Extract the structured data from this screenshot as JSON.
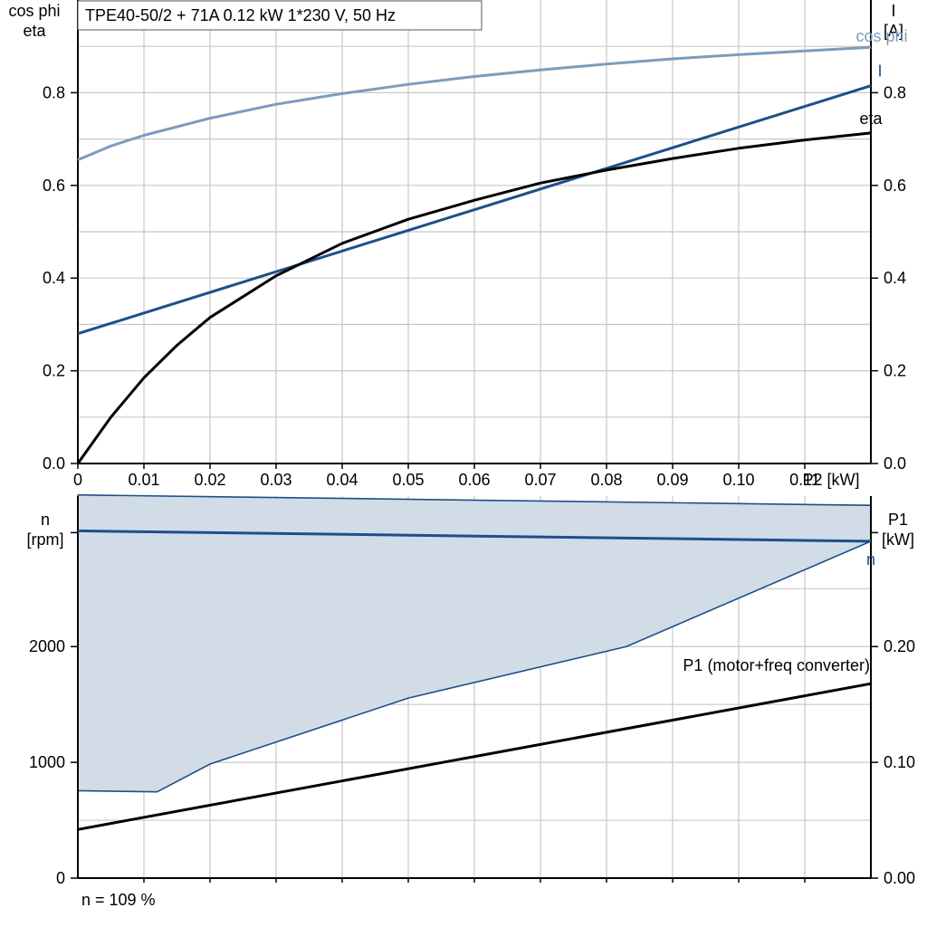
{
  "chart_data": [
    {
      "type": "line",
      "title": "TPE40-50/2 + 71A   0.12 kW   1*230 V, 50 Hz",
      "xlabel": "P2 [kW]",
      "ylabel_left": [
        "cos phi",
        "eta"
      ],
      "ylabel_right": [
        "I",
        "[A]"
      ],
      "xlim": [
        0,
        0.12
      ],
      "ylim": [
        0,
        1.0
      ],
      "ylim_right": [
        0,
        1.0
      ],
      "x_ticks": [
        "0",
        "0.01",
        "0.02",
        "0.03",
        "0.04",
        "0.05",
        "0.06",
        "0.07",
        "0.08",
        "0.09",
        "0.10",
        "0.11"
      ],
      "y_ticks_left": [
        "0.0",
        "0.2",
        "0.4",
        "0.6",
        "0.8"
      ],
      "y_ticks_right": [
        "0.0",
        "0.2",
        "0.4",
        "0.6",
        "0.8"
      ],
      "grid": true,
      "series": [
        {
          "name": "cos phi",
          "color": "#7b9cbd",
          "axis": "left",
          "x": [
            0,
            0.005,
            0.01,
            0.02,
            0.03,
            0.04,
            0.05,
            0.06,
            0.07,
            0.08,
            0.09,
            0.1,
            0.11,
            0.12
          ],
          "y": [
            0.655,
            0.685,
            0.708,
            0.745,
            0.775,
            0.798,
            0.818,
            0.835,
            0.849,
            0.862,
            0.873,
            0.882,
            0.89,
            0.898
          ]
        },
        {
          "name": "I",
          "color": "#1e4f88",
          "axis": "right",
          "x": [
            0,
            0.12
          ],
          "y": [
            0.28,
            0.815
          ]
        },
        {
          "name": "eta",
          "color": "#000000",
          "axis": "left",
          "x": [
            0,
            0.005,
            0.01,
            0.015,
            0.02,
            0.03,
            0.04,
            0.05,
            0.06,
            0.07,
            0.08,
            0.09,
            0.1,
            0.11,
            0.12
          ],
          "y": [
            0,
            0.1,
            0.185,
            0.255,
            0.315,
            0.405,
            0.475,
            0.527,
            0.568,
            0.605,
            0.633,
            0.658,
            0.68,
            0.698,
            0.713
          ]
        }
      ]
    },
    {
      "type": "area",
      "xlim": [
        0,
        0.12
      ],
      "ylabel_left": [
        "n",
        "[rpm]"
      ],
      "ylabel_right": [
        "P1",
        "[kW]"
      ],
      "ylim": [
        0,
        3300
      ],
      "ylim_right": [
        0,
        0.33
      ],
      "y_ticks_left": [
        "0",
        "1000",
        "2000"
      ],
      "y_ticks_right": [
        "0.00",
        "0.10",
        "0.20"
      ],
      "grid": true,
      "series": [
        {
          "name": "n",
          "color": "#1e4f88",
          "axis": "left",
          "x": [
            0,
            0.12
          ],
          "y": [
            3000,
            2910
          ]
        },
        {
          "name": "P1 (motor+freq converter)",
          "color": "#000000",
          "axis": "right",
          "x": [
            0,
            0.12
          ],
          "y": [
            0.042,
            0.168
          ]
        },
        {
          "name": "",
          "color": "#1e4f88",
          "fill": "#d1dce7",
          "axis": "left",
          "x_upper": [
            0,
            0.12
          ],
          "y_upper": [
            3310,
            3220
          ],
          "x_lower": [
            0,
            0.012,
            0.02,
            0.05,
            0.083,
            0.12
          ],
          "y_lower": [
            755,
            745,
            985,
            1555,
            2000,
            2910
          ]
        }
      ]
    }
  ],
  "footer": "n = 109 %"
}
